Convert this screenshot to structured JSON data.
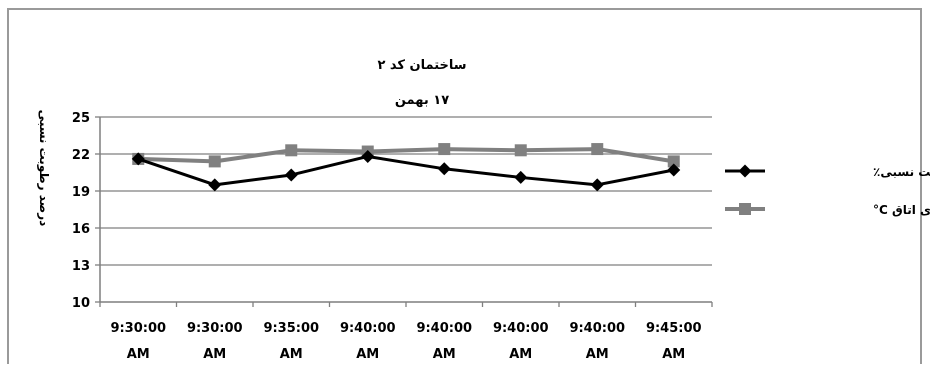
{
  "chart_data": {
    "type": "line",
    "title": "ساختمان کد ۲",
    "subtitle": "۱۷ بهمن",
    "xlabel": "",
    "ylabel": "درصد رطوبت نسبی",
    "ylim": [
      10,
      25
    ],
    "yticks": [
      10,
      13,
      16,
      19,
      22,
      25
    ],
    "categories": [
      [
        "9:30:00",
        "AM"
      ],
      [
        "9:30:00",
        "AM"
      ],
      [
        "9:35:00",
        "AM"
      ],
      [
        "9:40:00",
        "AM"
      ],
      [
        "9:40:00",
        "AM"
      ],
      [
        "9:40:00",
        "AM"
      ],
      [
        "9:40:00",
        "AM"
      ],
      [
        "9:45:00",
        "AM"
      ]
    ],
    "grid": true,
    "legend_position": "right",
    "series": [
      {
        "name": "رطوبت نسبی٪",
        "marker": "diamond",
        "color": "#000000",
        "values": [
          21.6,
          19.5,
          20.3,
          21.8,
          20.8,
          20.1,
          19.5,
          20.7
        ]
      },
      {
        "name": "دمای هوای اتاق C°",
        "marker": "square",
        "color": "#808080",
        "values": [
          21.6,
          21.4,
          22.3,
          22.2,
          22.4,
          22.3,
          22.4,
          21.4
        ]
      }
    ]
  }
}
